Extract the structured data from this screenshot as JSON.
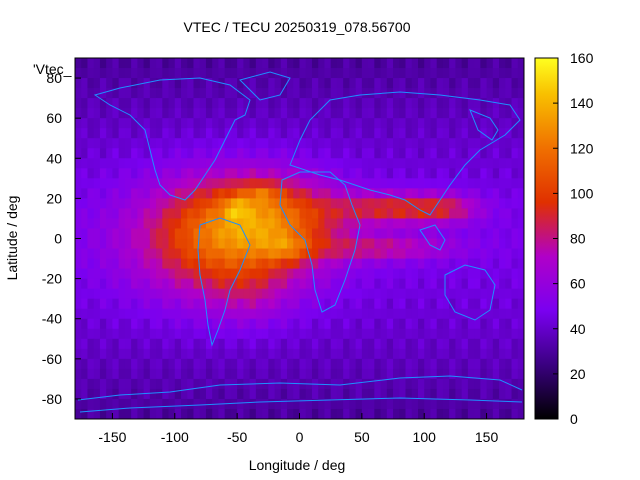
{
  "chart_data": {
    "type": "heatmap",
    "title": "VTEC / TECU 20250319_078.56700",
    "xlabel": "Longitude / deg",
    "ylabel": "Latitude / deg",
    "xlim": [
      -180,
      180
    ],
    "ylim": [
      -90,
      90
    ],
    "xticks": [
      -150,
      -100,
      -50,
      0,
      50,
      100,
      150
    ],
    "yticks": [
      -80,
      -60,
      -40,
      -20,
      0,
      20,
      40,
      60,
      80
    ],
    "colorbar": {
      "min": 0,
      "max": 160,
      "ticks": [
        0,
        20,
        40,
        60,
        80,
        100,
        120,
        140,
        160
      ]
    },
    "legend_key": "'Vtec_",
    "colors": {
      "coastline": "#1e90ff",
      "axis": "#000000"
    },
    "blobs": [
      {
        "lon": -60,
        "lat": 0,
        "slon": 70,
        "slat": 30,
        "value": 65
      },
      {
        "lon": -20,
        "lat": 10,
        "slon": 55,
        "slat": 20,
        "value": 40
      },
      {
        "lon": 80,
        "lat": 15,
        "slon": 50,
        "slat": 8,
        "value": 45
      },
      {
        "lon": 70,
        "lat": -5,
        "slon": 55,
        "slat": 6,
        "value": 30
      },
      {
        "lon": 120,
        "lat": 15,
        "slon": 25,
        "slat": 7,
        "value": 20
      },
      {
        "lon": -30,
        "lat": 22,
        "slon": 15,
        "slat": 5,
        "value": 20
      },
      {
        "lon": -50,
        "lat": 15,
        "slon": 10,
        "slat": 5,
        "value": 25
      },
      {
        "lon": -10,
        "lat": -5,
        "slon": 18,
        "slat": 6,
        "value": 20
      },
      {
        "lon": -40,
        "lat": -30,
        "slon": 30,
        "slat": 15,
        "value": 12
      }
    ],
    "base_value": 38
  }
}
